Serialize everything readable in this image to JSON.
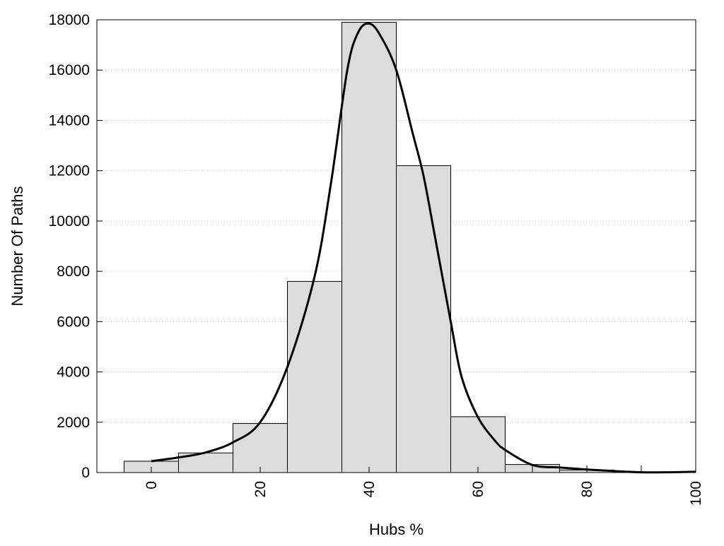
{
  "chart_data": {
    "type": "bar",
    "title": "",
    "xlabel": "Hubs %",
    "ylabel": "Number Of Paths",
    "xlim": [
      -10,
      100
    ],
    "ylim": [
      0,
      18000
    ],
    "x_ticks": [
      0,
      20,
      40,
      60,
      80,
      100
    ],
    "y_ticks": [
      0,
      2000,
      4000,
      6000,
      8000,
      10000,
      12000,
      14000,
      16000,
      18000
    ],
    "grid": "horizontal dotted",
    "bin_width": 10,
    "x": [
      0,
      10,
      20,
      30,
      40,
      50,
      60,
      70,
      80,
      90
    ],
    "values": [
      450,
      780,
      1950,
      7600,
      17900,
      12200,
      2220,
      320,
      100,
      20
    ],
    "bar_color": "#dcdcdc",
    "curve": {
      "type": "line",
      "x": [
        0,
        5,
        10,
        15,
        20,
        25,
        30,
        33,
        36,
        38,
        40,
        42,
        45,
        48,
        50,
        52,
        55,
        57,
        60,
        63,
        65,
        70,
        75,
        80,
        85,
        90,
        95,
        100
      ],
      "y": [
        450,
        600,
        800,
        1200,
        2000,
        4200,
        7800,
        11500,
        16000,
        17500,
        17850,
        17400,
        16000,
        13500,
        11800,
        9500,
        6000,
        3800,
        2200,
        1300,
        900,
        300,
        200,
        120,
        60,
        10,
        10,
        30
      ],
      "color": "#000000"
    }
  }
}
